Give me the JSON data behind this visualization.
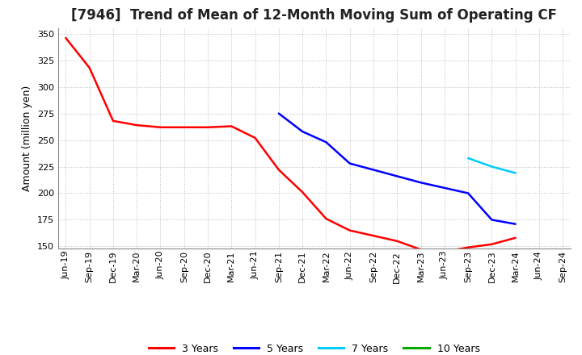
{
  "title": "[7946]  Trend of Mean of 12-Month Moving Sum of Operating CF",
  "ylabel": "Amount (million yen)",
  "ylim": [
    148,
    355
  ],
  "yticks": [
    150,
    175,
    200,
    225,
    250,
    275,
    300,
    325,
    350
  ],
  "background_color": "#ffffff",
  "grid_color": "#aaaaaa",
  "series": {
    "3 Years": {
      "color": "#ff0000",
      "dates": [
        "Jun-19",
        "Sep-19",
        "Dec-19",
        "Mar-20",
        "Jun-20",
        "Sep-20",
        "Dec-20",
        "Mar-21",
        "Jun-21",
        "Sep-21",
        "Dec-21",
        "Mar-22",
        "Jun-22",
        "Sep-22",
        "Dec-22",
        "Mar-23",
        "Jun-23",
        "Sep-23",
        "Dec-23",
        "Mar-24"
      ],
      "values": [
        346,
        318,
        268,
        264,
        262,
        262,
        262,
        263,
        252,
        222,
        201,
        176,
        165,
        160,
        155,
        147,
        145,
        149,
        152,
        158
      ]
    },
    "5 Years": {
      "color": "#0000ff",
      "dates": [
        "Sep-21",
        "Dec-21",
        "Mar-22",
        "Jun-22",
        "Sep-22",
        "Dec-22",
        "Mar-23",
        "Jun-23",
        "Sep-23",
        "Dec-23",
        "Mar-24"
      ],
      "values": [
        275,
        258,
        248,
        228,
        222,
        216,
        210,
        205,
        200,
        175,
        171
      ]
    },
    "7 Years": {
      "color": "#00ccff",
      "dates": [
        "Sep-23",
        "Dec-23",
        "Mar-24"
      ],
      "values": [
        233,
        225,
        219
      ]
    },
    "10 Years": {
      "color": "#00aa00",
      "dates": [],
      "values": []
    }
  },
  "all_dates": [
    "Jun-19",
    "Sep-19",
    "Dec-19",
    "Mar-20",
    "Jun-20",
    "Sep-20",
    "Dec-20",
    "Mar-21",
    "Jun-21",
    "Sep-21",
    "Dec-21",
    "Mar-22",
    "Jun-22",
    "Sep-22",
    "Dec-22",
    "Mar-23",
    "Jun-23",
    "Sep-23",
    "Dec-23",
    "Mar-24",
    "Jun-24",
    "Sep-24"
  ],
  "legend_labels": [
    "3 Years",
    "5 Years",
    "7 Years",
    "10 Years"
  ],
  "legend_colors": [
    "#ff0000",
    "#0000ff",
    "#00ccff",
    "#00aa00"
  ],
  "title_fontsize": 12,
  "axis_fontsize": 9,
  "tick_fontsize": 8,
  "linewidth": 1.8
}
